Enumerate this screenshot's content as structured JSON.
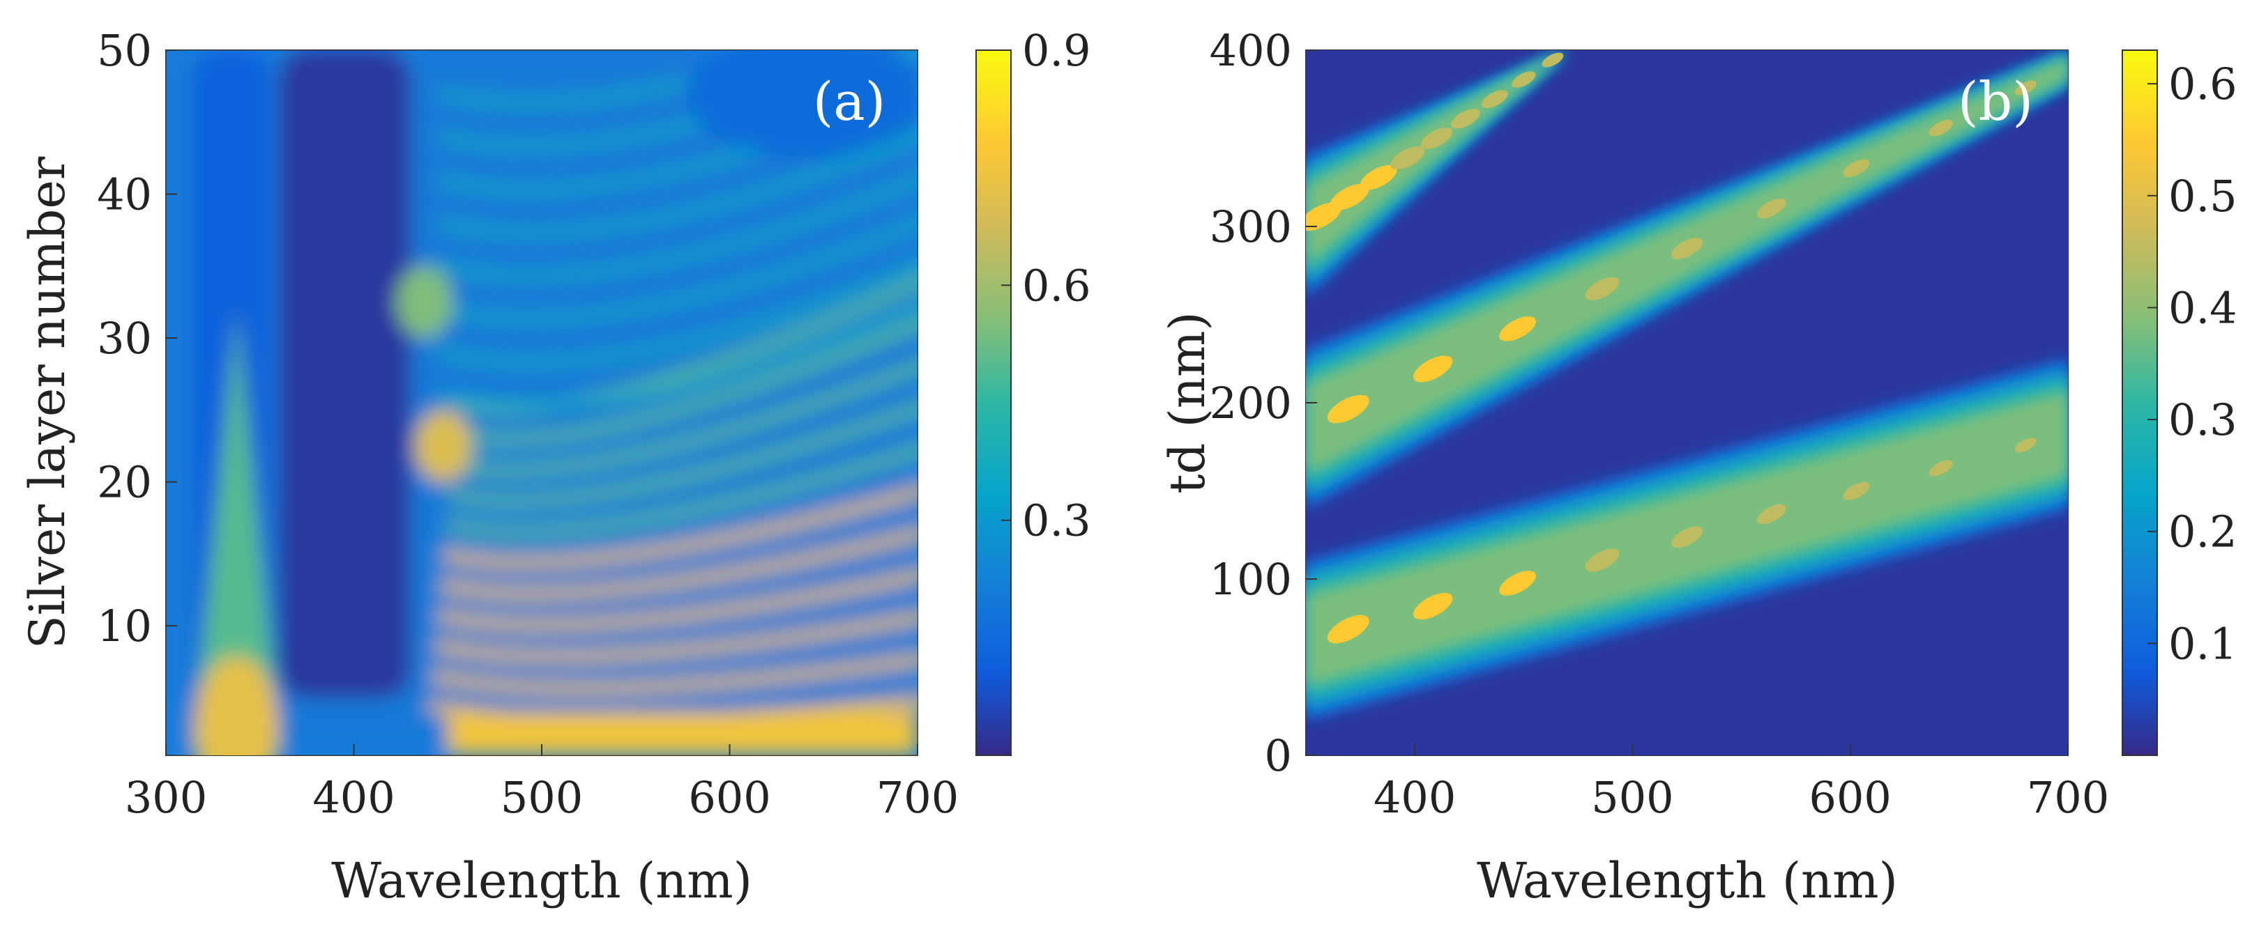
{
  "chart_data": [
    {
      "type": "heatmap",
      "panel_label": "(a)",
      "title": "",
      "xlabel": "Wavelength (nm)",
      "ylabel": "Silver layer number",
      "xlim": [
        300,
        700
      ],
      "ylim": [
        1,
        50
      ],
      "x_ticks": [
        300,
        400,
        500,
        600,
        700
      ],
      "y_ticks": [
        10,
        20,
        30,
        40,
        50
      ],
      "colorbar": {
        "min": 0,
        "max": 0.9,
        "ticks": [
          0.3,
          0.6,
          0.9
        ]
      },
      "colormap": "parula",
      "background_value": 0.2,
      "features": [
        {
          "name": "uv-band",
          "x": [
            315,
            355
          ],
          "y": [
            1,
            50
          ],
          "value": 0.12
        },
        {
          "name": "uv-peak",
          "x": [
            325,
            350
          ],
          "y": [
            1,
            8
          ],
          "value": 0.72
        },
        {
          "name": "low-transmission-gap",
          "x": [
            360,
            430
          ],
          "y": [
            5,
            50
          ],
          "value": 0.03
        },
        {
          "name": "fringes-near-edge",
          "x": [
            435,
            700
          ],
          "y": [
            2,
            25
          ],
          "value": 0.65
        },
        {
          "name": "fringe-spot-1",
          "x": [
            440,
            455
          ],
          "y": [
            20,
            25
          ],
          "value": 0.7
        },
        {
          "name": "fringe-spot-2",
          "x": [
            430,
            445
          ],
          "y": [
            30,
            35
          ],
          "value": 0.55
        },
        {
          "name": "bottom-band",
          "x": [
            450,
            700
          ],
          "y": [
            1,
            4
          ],
          "value": 0.75
        }
      ]
    },
    {
      "type": "heatmap",
      "panel_label": "(b)",
      "title": "",
      "xlabel": "Wavelength (nm)",
      "ylabel": "td (nm)",
      "xlim": [
        350,
        700
      ],
      "ylim": [
        0,
        400
      ],
      "x_ticks": [
        400,
        500,
        600,
        700
      ],
      "y_ticks": [
        0,
        100,
        200,
        300,
        400
      ],
      "colorbar": {
        "min": 0,
        "max": 0.63,
        "ticks": [
          0.1,
          0.2,
          0.3,
          0.4,
          0.5,
          0.6
        ]
      },
      "colormap": "parula",
      "background_value": 0.02,
      "bands": [
        {
          "name": "band-1",
          "x_start": 350,
          "y_start": [
            20,
            110
          ],
          "x_end": 700,
          "y_end": [
            140,
            225
          ],
          "core_value": 0.35,
          "peak_value": 0.55
        },
        {
          "name": "band-2",
          "x_start": 350,
          "y_start": [
            140,
            230
          ],
          "x_end": 700,
          "y_end": [
            380,
            400
          ],
          "core_value": 0.35,
          "peak_value": 0.55
        },
        {
          "name": "band-3",
          "x_start": 350,
          "y_start": [
            260,
            340
          ],
          "x_end": 470,
          "y_end": [
            400,
            400
          ],
          "core_value": 0.35,
          "peak_value": 0.55
        }
      ]
    }
  ]
}
